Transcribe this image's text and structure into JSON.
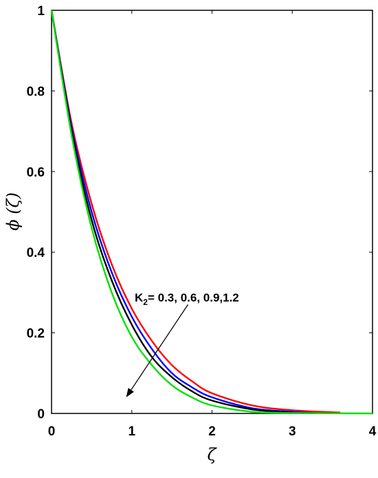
{
  "chart_data": {
    "type": "line",
    "xlabel": "ζ",
    "ylabel": "ϕ (ζ)",
    "xlim": [
      0,
      4
    ],
    "ylim": [
      0,
      1
    ],
    "xticks": [
      0,
      1,
      2,
      3,
      4
    ],
    "yticks": [
      0,
      0.2,
      0.4,
      0.6,
      0.8,
      1
    ],
    "xtick_labels": [
      "0",
      "1",
      "2",
      "3",
      "4"
    ],
    "ytick_labels": [
      "0",
      "0.2",
      "0.4",
      "0.6",
      "0.8",
      "1"
    ],
    "grid": false,
    "annotation": {
      "main": "K",
      "sub": "2",
      "rest": "= 0.3, 0.6, 0.9,1.2",
      "arrow_from": [
        1.7,
        0.27
      ],
      "arrow_to": [
        0.93,
        0.04
      ]
    },
    "series": [
      {
        "color": "#ff0000",
        "x": [
          0,
          0.25,
          0.5,
          0.75,
          1,
          1.25,
          1.5,
          1.75,
          2,
          2.5,
          3,
          3.6
        ],
        "y": [
          1,
          0.72,
          0.52,
          0.37,
          0.26,
          0.18,
          0.12,
          0.08,
          0.05,
          0.02,
          0.008,
          0.002
        ]
      },
      {
        "color": "#0000ff",
        "x": [
          0,
          0.25,
          0.5,
          0.75,
          1,
          1.25,
          1.5,
          1.75,
          2,
          2.5,
          3,
          3.3
        ],
        "y": [
          1,
          0.71,
          0.5,
          0.35,
          0.24,
          0.16,
          0.1,
          0.065,
          0.04,
          0.013,
          0.004,
          0.001
        ]
      },
      {
        "color": "#000000",
        "x": [
          0,
          0.25,
          0.5,
          0.75,
          1,
          1.25,
          1.5,
          1.75,
          2,
          2.5,
          3
        ],
        "y": [
          1,
          0.7,
          0.48,
          0.33,
          0.22,
          0.14,
          0.09,
          0.055,
          0.032,
          0.01,
          0.002
        ]
      },
      {
        "color": "#00e000",
        "x": [
          0,
          0.25,
          0.5,
          0.75,
          1,
          1.25,
          1.5,
          1.75,
          2,
          2.5,
          3,
          4
        ],
        "y": [
          1,
          0.69,
          0.46,
          0.3,
          0.19,
          0.12,
          0.07,
          0.04,
          0.02,
          0.004,
          0.001,
          0
        ]
      }
    ]
  }
}
